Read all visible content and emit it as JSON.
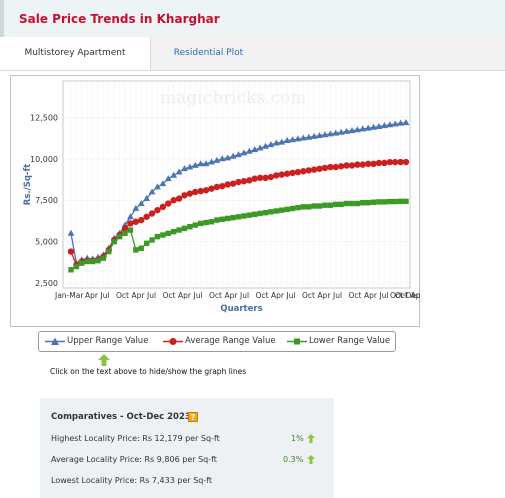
{
  "header": {
    "title": "Sale Price Trends in Kharghar"
  },
  "tabs": [
    {
      "label": "Multistorey Apartment"
    },
    {
      "label": "Residential Plot"
    }
  ],
  "watermark": "magicbricks.com",
  "colors": {
    "upper": "#4a75b5",
    "average": "#cc1f1f",
    "lower": "#3b9a26",
    "title": "#c8102e"
  },
  "legend": [
    {
      "label": "Upper Range Value"
    },
    {
      "label": "Average Range Value"
    },
    {
      "label": "Lower Range Value"
    }
  ],
  "hint": "Click on the text above to hide/show the graph lines",
  "comparatives": {
    "title": "Comparatives - Oct-Dec 2023",
    "rows": [
      {
        "label": "Highest Locality Price: Rs 12,179 per Sq-ft",
        "pct": "1%"
      },
      {
        "label": "Average Locality Price: Rs 9,806 per Sq-ft",
        "pct": "0.3%"
      },
      {
        "label": "Lowest Locality Price: Rs 7,433 per Sq-ft",
        "pct": ""
      }
    ]
  },
  "chart_data": {
    "type": "line",
    "xlabel": "Quarters",
    "ylabel": "Rs./Sq-ft",
    "ylim": [
      2200,
      14700
    ],
    "yticks": [
      "2,500",
      "5,000",
      "7,500",
      "10,000",
      "12,500"
    ],
    "yticks_values": [
      2500,
      5000,
      7500,
      10000,
      12500
    ],
    "xticks": [
      "Jan-Mar",
      "Apr",
      "Jul",
      "Oct",
      "Oct-Dec"
    ],
    "legend_position": "bottom",
    "grid": true,
    "series": [
      {
        "name": "Upper Range Value",
        "color": "#4a75b5",
        "marker": "triangle",
        "values": [
          5500,
          3700,
          3900,
          4000,
          3950,
          4050,
          4200,
          4600,
          5200,
          5500,
          6000,
          6500,
          7000,
          7300,
          7600,
          8000,
          8300,
          8500,
          8800,
          9000,
          9200,
          9400,
          9500,
          9600,
          9700,
          9700,
          9800,
          9900,
          10000,
          10050,
          10150,
          10250,
          10350,
          10450,
          10550,
          10650,
          10750,
          10850,
          10950,
          11000,
          11100,
          11150,
          11200,
          11250,
          11300,
          11350,
          11400,
          11450,
          11500,
          11550,
          11600,
          11650,
          11700,
          11750,
          11800,
          11850,
          11900,
          11950,
          12000,
          12050,
          12100,
          12150,
          12179
        ]
      },
      {
        "name": "Average Range Value",
        "color": "#cc1f1f",
        "marker": "circle",
        "values": [
          4400,
          3600,
          3800,
          3850,
          3850,
          3900,
          4100,
          4500,
          5100,
          5400,
          5800,
          6100,
          6200,
          6300,
          6500,
          6700,
          6900,
          7100,
          7300,
          7500,
          7600,
          7800,
          7900,
          8000,
          8050,
          8100,
          8200,
          8300,
          8350,
          8450,
          8500,
          8600,
          8650,
          8700,
          8800,
          8850,
          8850,
          8900,
          9000,
          9050,
          9100,
          9150,
          9200,
          9250,
          9300,
          9350,
          9400,
          9450,
          9500,
          9500,
          9550,
          9600,
          9600,
          9650,
          9650,
          9700,
          9700,
          9750,
          9750,
          9800,
          9800,
          9806,
          9806
        ]
      },
      {
        "name": "Lower Range Value",
        "color": "#3b9a26",
        "marker": "square",
        "values": [
          3300,
          3500,
          3700,
          3800,
          3800,
          3850,
          4000,
          4400,
          5000,
          5300,
          5500,
          5700,
          4500,
          4600,
          4900,
          5100,
          5300,
          5400,
          5500,
          5600,
          5700,
          5800,
          5900,
          6000,
          6100,
          6150,
          6200,
          6300,
          6350,
          6400,
          6450,
          6500,
          6550,
          6600,
          6650,
          6700,
          6750,
          6800,
          6850,
          6900,
          6950,
          7000,
          7050,
          7100,
          7100,
          7150,
          7150,
          7200,
          7200,
          7250,
          7250,
          7300,
          7300,
          7300,
          7350,
          7350,
          7380,
          7400,
          7400,
          7420,
          7420,
          7433,
          7433
        ]
      }
    ]
  }
}
